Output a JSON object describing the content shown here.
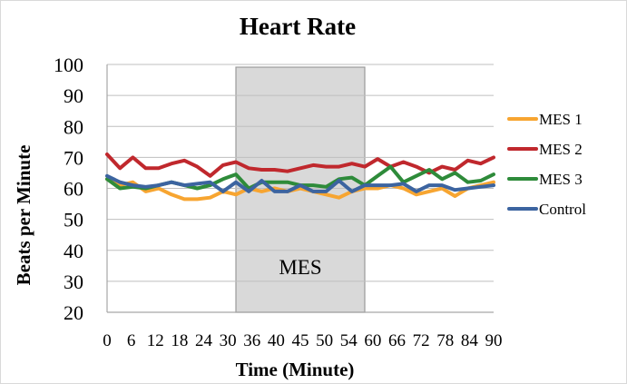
{
  "chart_data": {
    "type": "line",
    "title": "Heart Rate",
    "xlabel": "Time (Minute)",
    "ylabel": "Beats per Minute",
    "ylim": [
      20,
      100
    ],
    "xlim": [
      0,
      90
    ],
    "x_ticks": [
      0,
      6,
      12,
      18,
      24,
      30,
      36,
      40,
      45,
      50,
      54,
      60,
      66,
      72,
      78,
      84,
      90
    ],
    "y_ticks": [
      20,
      30,
      40,
      50,
      60,
      70,
      80,
      90,
      100
    ],
    "grid": "horizontal",
    "legend_position": "right",
    "shaded_region": {
      "label": "MES",
      "x_start": 30,
      "x_end": 60,
      "color": "#d9d9d9"
    },
    "x": [
      0,
      3,
      6,
      9,
      12,
      15,
      18,
      21,
      24,
      27,
      30,
      33,
      36,
      39,
      42,
      45,
      48,
      51,
      54,
      57,
      60,
      63,
      66,
      69,
      72,
      75,
      78,
      81,
      84,
      87,
      90
    ],
    "series": [
      {
        "name": "MES 1",
        "color": "#f7a531",
        "values": [
          63,
          61,
          62,
          59,
          60,
          58,
          56.5,
          56.5,
          57,
          59,
          58,
          60,
          59,
          60,
          59,
          60,
          59,
          58,
          57,
          59,
          60,
          60,
          61,
          60,
          58,
          59,
          60,
          57.5,
          60,
          61,
          62
        ]
      },
      {
        "name": "MES 2",
        "color": "#c0282d",
        "values": [
          71,
          66.5,
          70,
          66.5,
          66.5,
          68,
          69,
          67,
          64,
          67.5,
          68.5,
          66.5,
          66,
          66,
          65.5,
          66.5,
          67.5,
          67,
          67,
          68,
          67,
          69.5,
          67,
          68.5,
          67,
          65,
          67,
          66,
          69,
          68,
          70
        ]
      },
      {
        "name": "MES 3",
        "color": "#2e8b3a",
        "values": [
          63,
          60,
          60.5,
          60,
          61,
          62,
          61,
          60,
          61,
          63,
          64.5,
          60,
          62,
          62,
          62,
          61,
          61,
          60.5,
          63,
          63.5,
          61,
          64,
          67,
          62,
          64,
          66,
          63,
          65,
          62,
          62.5,
          64.5
        ]
      },
      {
        "name": "Control",
        "color": "#3c64a0",
        "values": [
          64,
          62,
          61,
          60.5,
          61,
          62,
          61,
          61.5,
          62,
          59,
          62,
          59,
          62.5,
          59,
          59,
          61,
          59,
          59,
          62.5,
          59,
          61,
          61,
          61,
          61.5,
          59,
          61,
          61,
          59.5,
          60,
          60.5,
          61
        ]
      }
    ]
  }
}
